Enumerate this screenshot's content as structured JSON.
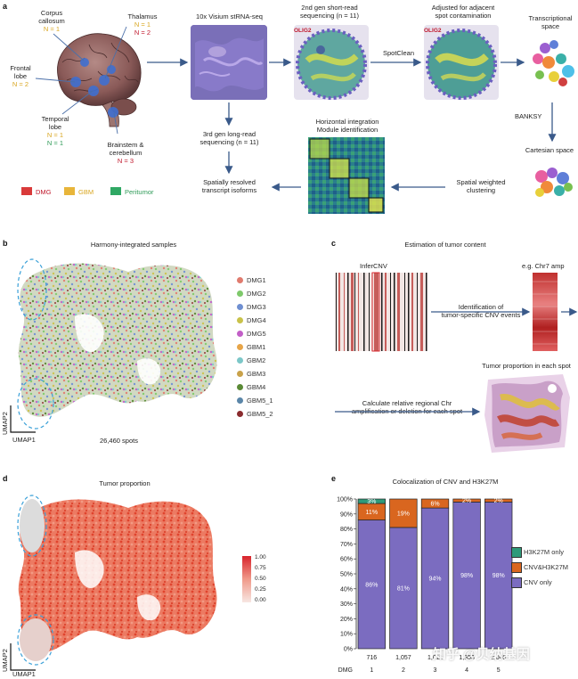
{
  "panel_labels": {
    "a": "a",
    "b": "b",
    "c": "c",
    "d": "d",
    "e": "e"
  },
  "brain": {
    "regions": [
      {
        "name": "Corpus\ncallosum",
        "n1": "N = 1",
        "n2": ""
      },
      {
        "name": "Thalamus",
        "n1": "N = 1",
        "n2": "N = 2"
      },
      {
        "name": "Frontal\nlobe",
        "n1": "N = 2",
        "n2": ""
      },
      {
        "name": "Temporal\nlobe",
        "n1": "N = 1",
        "n2": "N = 1"
      },
      {
        "name": "Brainstem &\ncerebellum",
        "n1": "N = 3",
        "n2": ""
      }
    ],
    "legend": [
      {
        "label": "DMG",
        "color": "#d93a3a"
      },
      {
        "label": "GBM",
        "color": "#e8b53a"
      },
      {
        "label": "Peritumor",
        "color": "#2fa864"
      }
    ]
  },
  "workflow": {
    "visium": "10x Visium stRNA-seq",
    "short_read_1": "2nd gen short-read",
    "short_read_2": "sequencing (n = 11)",
    "adjusted_1": "Adjusted for adjacent",
    "adjusted_2": "spot contamination",
    "spotclean": "SpotClean",
    "transcriptional_1": "Transcriptional",
    "transcriptional_2": "space",
    "banksy": "BANKSY",
    "cartesian": "Cartesian space",
    "spatial_1": "Spatial weighted",
    "spatial_2": "clustering",
    "horizontal_1": "Horizontal integration",
    "horizontal_2": "Module identification",
    "long_read_1": "3rd gen long-read",
    "long_read_2": "sequencing (n = 11)",
    "isoform_1": "Spatially resolved",
    "isoform_2": "transcript isoforms",
    "olig2": "OLIG2"
  },
  "panel_b": {
    "title": "Harmony-integrated samples",
    "spots": "26,460 spots",
    "umap1": "UMAP1",
    "umap2": "UMAP2",
    "legend": [
      {
        "label": "DMG1",
        "color": "#e07b6e"
      },
      {
        "label": "DMG2",
        "color": "#7ec96b"
      },
      {
        "label": "DMG3",
        "color": "#6f8fd1"
      },
      {
        "label": "DMG4",
        "color": "#c9c24a"
      },
      {
        "label": "DMG5",
        "color": "#c25fc7"
      },
      {
        "label": "GBM1",
        "color": "#e7a548"
      },
      {
        "label": "GBM2",
        "color": "#7cc7c8"
      },
      {
        "label": "GBM3",
        "color": "#c9a24a"
      },
      {
        "label": "GBM4",
        "color": "#5a8a36"
      },
      {
        "label": "GBM5_1",
        "color": "#5a86a8"
      },
      {
        "label": "GBM5_2",
        "color": "#8a2b2e"
      }
    ]
  },
  "panel_c": {
    "title": "Estimation of tumor content",
    "infercnv": "InferCNV",
    "chr7": "e.g. Chr7 amp",
    "identification_1": "Identification of",
    "identification_2": "tumor-specific CNV events",
    "proportion": "Tumor proportion in each spot",
    "calc_1": "Calculate relative regional Chr",
    "calc_2": "amplification or deletion for each spot"
  },
  "panel_d": {
    "title": "Tumor proportion",
    "umap1": "UMAP1",
    "umap2": "UMAP2",
    "scale": [
      "1.00",
      "0.75",
      "0.50",
      "0.25",
      "0.00"
    ]
  },
  "panel_e": {
    "title": "Colocalization of CNV and H3K27M",
    "watermark": "知乎 @贝纳基因",
    "x_axis_label": "DMG",
    "legend": [
      {
        "label": "H3K27M only",
        "color": "#2e9a7a"
      },
      {
        "label": "CNV&H3K27M",
        "color": "#d9661f"
      },
      {
        "label": "CNV only",
        "color": "#7b6cc0"
      }
    ]
  },
  "chart_data": {
    "type": "bar",
    "stacked": true,
    "title": "Colocalization of CNV and H3K27M",
    "xlabel": "DMG",
    "ylabel": "",
    "ylim": [
      0,
      100
    ],
    "yticks": [
      "0%",
      "10%",
      "20%",
      "30%",
      "40%",
      "50%",
      "60%",
      "70%",
      "80%",
      "90%",
      "100%"
    ],
    "categories": [
      "1",
      "2",
      "3",
      "4",
      "5"
    ],
    "counts": [
      "716",
      "1,057",
      "1,011",
      "1,953",
      "2,069"
    ],
    "series": [
      {
        "name": "CNV only",
        "color": "#7b6cc0",
        "values": [
          86,
          81,
          94,
          98,
          98
        ],
        "labels": [
          "86%",
          "81%",
          "94%",
          "98%",
          "98%"
        ]
      },
      {
        "name": "CNV&H3K27M",
        "color": "#d9661f",
        "values": [
          11,
          19,
          6,
          2,
          2
        ],
        "labels": [
          "11%",
          "19%",
          "6%",
          "2%",
          "2%"
        ]
      },
      {
        "name": "H3K27M only",
        "color": "#2e9a7a",
        "values": [
          3,
          0,
          0,
          0,
          0
        ],
        "labels": [
          "3%",
          "",
          "",
          "",
          ""
        ]
      }
    ]
  }
}
